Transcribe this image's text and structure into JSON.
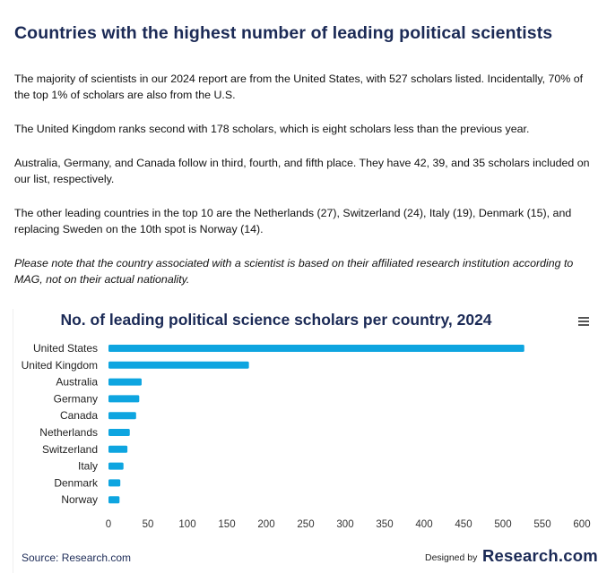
{
  "heading": "Countries with the highest number of leading political scientists",
  "paragraphs": [
    "The majority of scientists in our 2024 report are from the United States, with 527 scholars listed. Incidentally, 70% of the top 1% of scholars are also from the U.S.",
    "The United Kingdom ranks second with 178 scholars, which is eight scholars less than the previous year.",
    "Australia, Germany, and Canada follow in third, fourth, and fifth place. They have 42, 39, and 35 scholars included on our list, respectively.",
    "The other leading countries in the top 10 are the Netherlands (27), Switzerland (24), Italy (19), Denmark (15), and replacing Sweden on the 10th spot is Norway (14).",
    "Please note that the country associated with a scientist is based on their affiliated research institution according to MAG, not on their actual nationality."
  ],
  "chart_data": {
    "type": "bar",
    "orientation": "horizontal",
    "title": "No. of leading political science scholars per country, 2024",
    "categories": [
      "United States",
      "United Kingdom",
      "Australia",
      "Germany",
      "Canada",
      "Netherlands",
      "Switzerland",
      "Italy",
      "Denmark",
      "Norway"
    ],
    "values": [
      527,
      178,
      42,
      39,
      35,
      27,
      24,
      19,
      15,
      14
    ],
    "xlim": [
      0,
      600
    ],
    "xticks": [
      0,
      50,
      100,
      150,
      200,
      250,
      300,
      350,
      400,
      450,
      500,
      550,
      600
    ],
    "grid": false,
    "bar_color": "#0ea5e0"
  },
  "footer": {
    "source": "Source: Research.com",
    "designed_by": "Designed by",
    "brand": "Research.com"
  },
  "icons": {
    "chart_menu": "hamburger-menu-icon"
  }
}
